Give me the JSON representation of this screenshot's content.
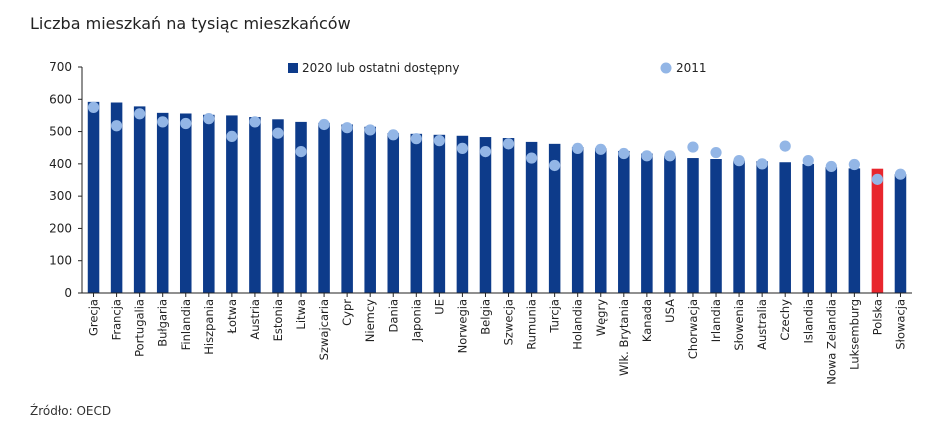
{
  "chart_data": {
    "type": "bar",
    "title": "Liczba mieszkań na tysiąc mieszkańców",
    "source": "Źródło: OECD",
    "xlabel": "",
    "ylabel": "",
    "ylim": [
      0,
      700
    ],
    "yticks": [
      0,
      100,
      200,
      300,
      400,
      500,
      600,
      700
    ],
    "grid": false,
    "legend_position": "top",
    "categories": [
      "Grecja",
      "Francja",
      "Portugalia",
      "Bułgaria",
      "Finlandia",
      "Hiszpania",
      "Łotwa",
      "Austria",
      "Estonia",
      "Litwa",
      "Szwajcaria",
      "Cypr",
      "Niemcy",
      "Dania",
      "Japonia",
      "UE",
      "Norwegia",
      "Belgia",
      "Szwecja",
      "Rumunia",
      "Turcja",
      "Holandia",
      "Węgry",
      "Wlk. Brytania",
      "Kanada",
      "USA",
      "Chorwacja",
      "Irlandia",
      "Słowenia",
      "Australia",
      "Czechy",
      "Islandia",
      "Nowa Zelandia",
      "Luksemburg",
      "Polska",
      "Słowacja"
    ],
    "highlight_category": "Polska",
    "series": [
      {
        "name": "2020 lub ostatni dostępny",
        "mark": "bar",
        "color": "#0d3b8a",
        "highlight_color": "#e8262d",
        "values": [
          592,
          590,
          578,
          558,
          556,
          552,
          550,
          545,
          538,
          530,
          527,
          522,
          515,
          495,
          493,
          490,
          487,
          483,
          480,
          468,
          462,
          452,
          448,
          440,
          432,
          425,
          418,
          415,
          410,
          408,
          405,
          400,
          390,
          386,
          385,
          368
        ]
      },
      {
        "name": "2011",
        "mark": "point",
        "color": "#93b6e6",
        "values": [
          575,
          518,
          555,
          530,
          525,
          540,
          485,
          530,
          495,
          438,
          522,
          512,
          505,
          490,
          478,
          472,
          448,
          438,
          462,
          418,
          395,
          448,
          445,
          432,
          425,
          425,
          452,
          435,
          410,
          400,
          455,
          410,
          392,
          398,
          352,
          368
        ]
      }
    ]
  }
}
